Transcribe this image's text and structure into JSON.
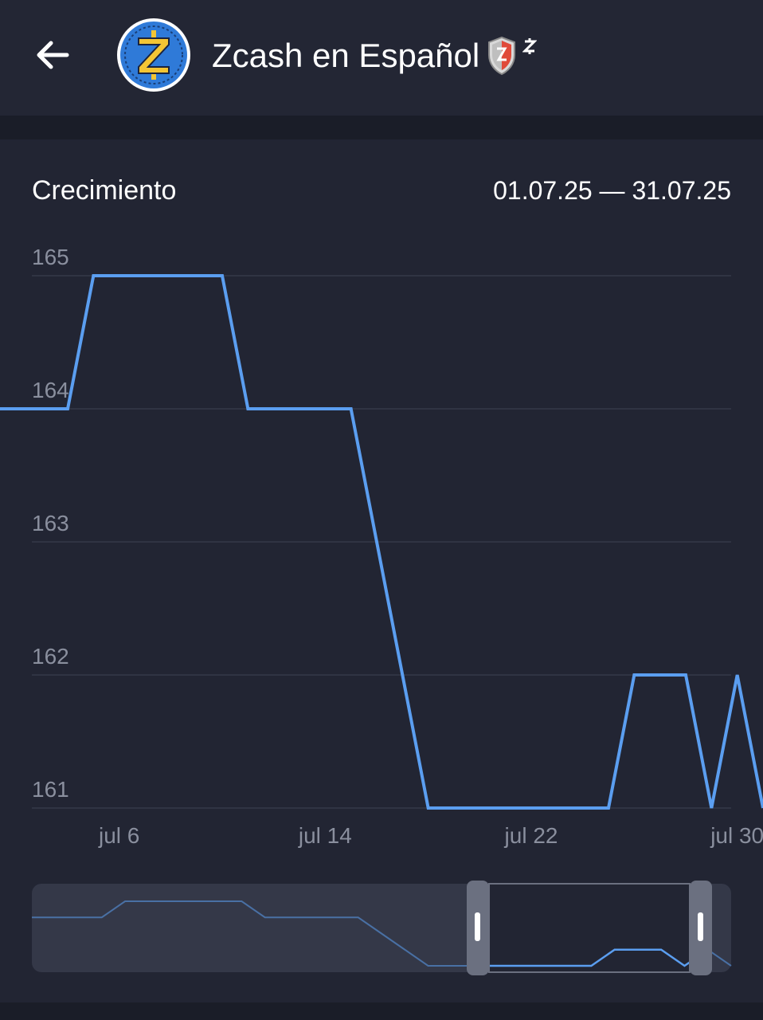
{
  "header": {
    "title": "Zcash en Español",
    "back_icon": "arrow-left-icon",
    "avatar_icon": "zcash-logo-icon",
    "badge_icon": "shield-badge-icon"
  },
  "section": {
    "title": "Crecimiento",
    "date_range": "01.07.25 — 31.07.25"
  },
  "colors": {
    "accent": "#5b9ef0",
    "background": "#222533",
    "header": "#232634",
    "text": "#ffffff",
    "muted": "#8a8f9e"
  },
  "chart_data": {
    "type": "line",
    "title": "",
    "xlabel": "",
    "ylabel": "",
    "ylim": [
      161,
      165
    ],
    "yticks": [
      161,
      162,
      163,
      164,
      165
    ],
    "xticks": [
      "jul 6",
      "jul 14",
      "jul 22",
      "jul 30"
    ],
    "grid": true,
    "series": [
      {
        "color": "#5b9ef0",
        "x": [
          1,
          2,
          3,
          4,
          5,
          6,
          7,
          8,
          9,
          10,
          11,
          12,
          13,
          14,
          15,
          16,
          17,
          18,
          19,
          20,
          21,
          22,
          23,
          24,
          25,
          26,
          27,
          28,
          29,
          30,
          31
        ],
        "values": [
          164,
          164,
          164,
          164,
          165,
          165,
          165,
          165,
          165,
          165,
          164,
          164,
          164,
          164,
          164,
          163,
          162,
          161,
          161,
          161,
          161,
          161,
          161,
          161,
          161,
          162,
          162,
          162,
          161,
          162,
          161
        ]
      }
    ],
    "navigator": {
      "selected_range": "01.07.25 — 31.07.25"
    }
  }
}
